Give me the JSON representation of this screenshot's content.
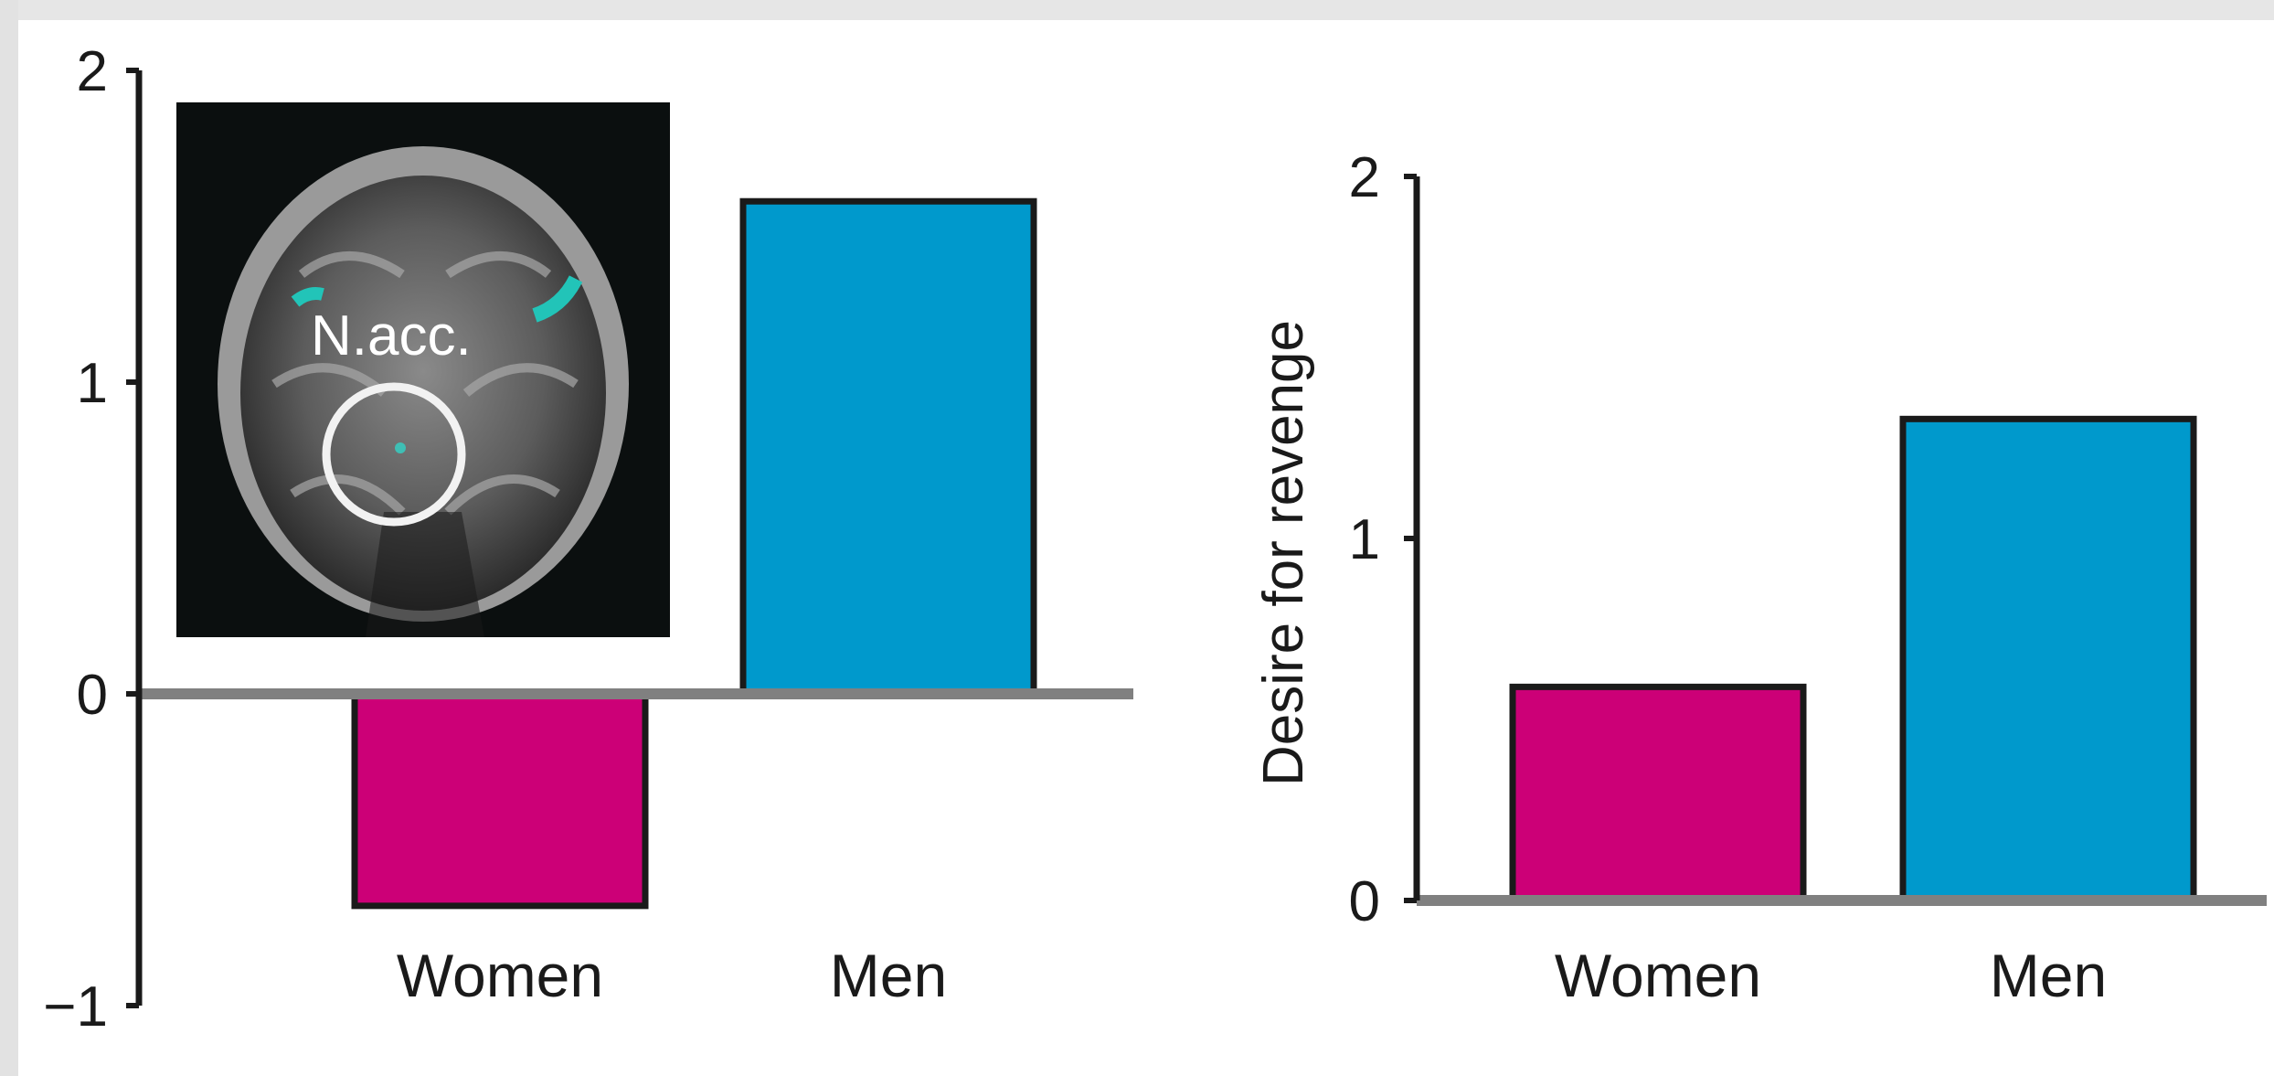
{
  "colors": {
    "women": "#cc0077",
    "men": "#0099cc",
    "axis": "#1a1a1a",
    "baseline": "#808080"
  },
  "chart_data": [
    {
      "type": "bar",
      "categories": [
        "Women",
        "Men"
      ],
      "values": [
        -0.68,
        1.58
      ],
      "ylabel": "",
      "ylim": [
        -1,
        2
      ],
      "yticks": [
        "2",
        "1",
        "0",
        "−1"
      ],
      "grid": false,
      "inset": {
        "icon": "brain-mri-icon",
        "label": "N.acc."
      }
    },
    {
      "type": "bar",
      "categories": [
        "Women",
        "Men"
      ],
      "values": [
        0.59,
        1.33
      ],
      "ylabel": "Desire for revenge",
      "ylim": [
        0,
        2
      ],
      "yticks": [
        "2",
        "1",
        "0"
      ],
      "grid": false
    }
  ]
}
